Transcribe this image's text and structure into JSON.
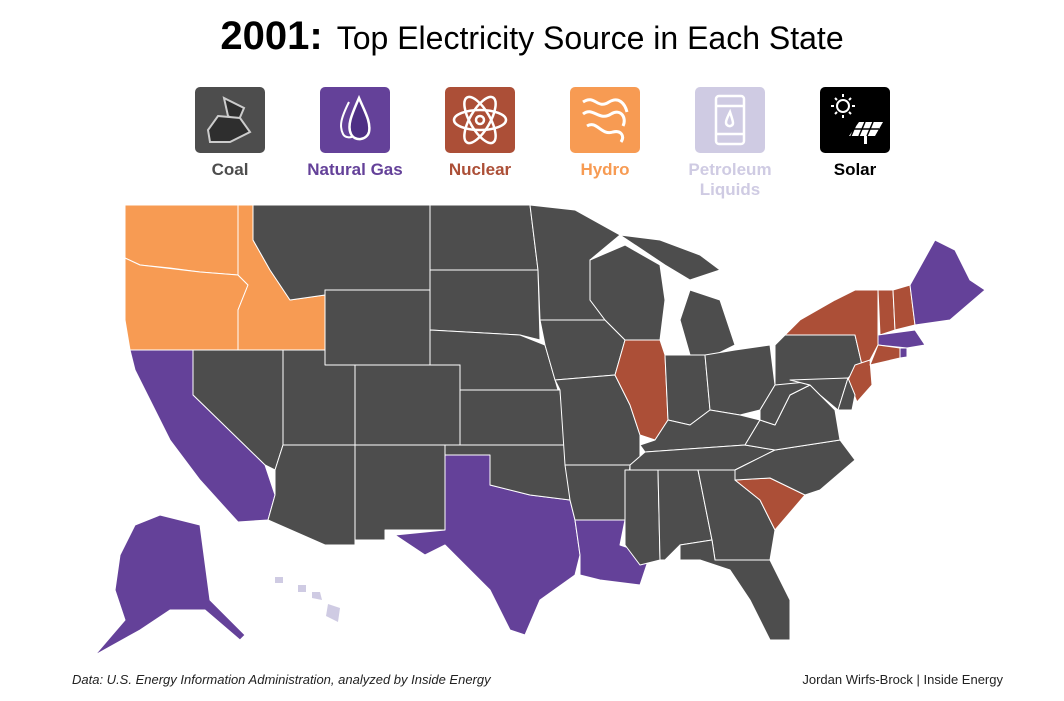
{
  "title": {
    "year": "2001:",
    "subtitle": "Top Electricity Source in Each State"
  },
  "legend": [
    {
      "key": "coal",
      "label": "Coal",
      "color": "#4d4d4d",
      "icon": "coal-icon"
    },
    {
      "key": "gas",
      "label": "Natural Gas",
      "color": "#644199",
      "icon": "gas-flame-icon"
    },
    {
      "key": "nuclear",
      "label": "Nuclear",
      "color": "#ac4f37",
      "icon": "atom-icon"
    },
    {
      "key": "hydro",
      "label": "Hydro",
      "color": "#f79b53",
      "icon": "water-wave-icon"
    },
    {
      "key": "petroleum",
      "label": "Petroleum Liquids",
      "color": "#cfcbe3",
      "icon": "oil-barrel-icon"
    },
    {
      "key": "solar",
      "label": "Solar",
      "color": "#000000",
      "icon": "solar-panel-icon"
    }
  ],
  "states": {
    "WA": "hydro",
    "OR": "hydro",
    "ID": "hydro",
    "MT": "coal",
    "WY": "coal",
    "ND": "coal",
    "SD": "coal",
    "NE": "coal",
    "CO": "coal",
    "UT": "coal",
    "NV": "coal",
    "CA": "gas",
    "AZ": "coal",
    "NM": "coal",
    "TX": "gas",
    "OK": "coal",
    "KS": "coal",
    "MN": "coal",
    "IA": "coal",
    "MO": "coal",
    "AR": "coal",
    "LA": "gas",
    "WI": "coal",
    "IL": "nuclear",
    "MI": "coal",
    "IN": "coal",
    "OH": "coal",
    "KY": "coal",
    "TN": "coal",
    "MS": "coal",
    "AL": "coal",
    "GA": "coal",
    "FL": "coal",
    "SC": "nuclear",
    "NC": "coal",
    "VA": "coal",
    "WV": "coal",
    "PA": "coal",
    "NY": "nuclear",
    "NJ": "nuclear",
    "MD": "coal",
    "DE": "coal",
    "VT": "nuclear",
    "NH": "nuclear",
    "ME": "gas",
    "MA": "gas",
    "CT": "nuclear",
    "RI": "gas",
    "AK": "gas",
    "HI": "petroleum"
  },
  "footer": {
    "source": "Data: U.S. Energy Information Administration, analyzed by Inside Energy",
    "credit": "Jordan Wirfs-Brock | Inside Energy"
  }
}
